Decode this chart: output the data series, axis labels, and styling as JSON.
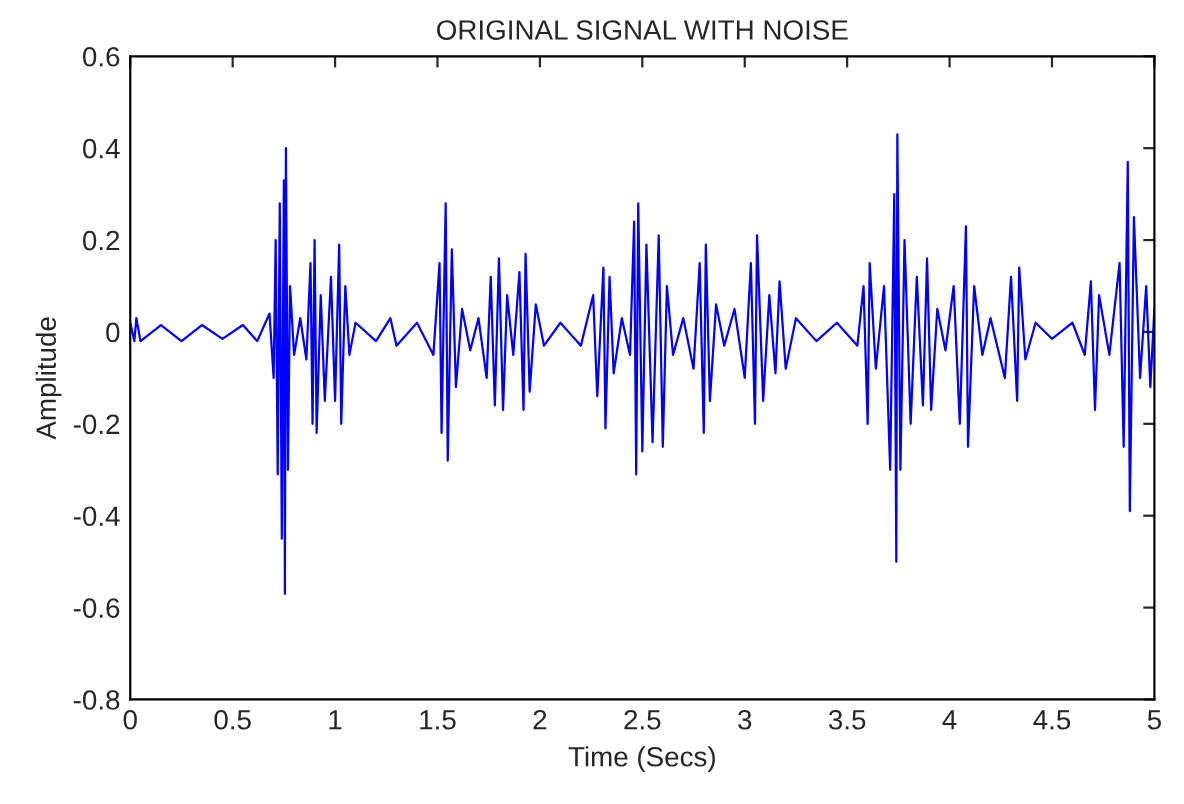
{
  "chart_data": {
    "type": "line",
    "title": "ORIGINAL SIGNAL WITH NOISE",
    "xlabel": "Time (Secs)",
    "ylabel": "Amplitude",
    "xlim": [
      0,
      5
    ],
    "ylim": [
      -0.8,
      0.6
    ],
    "xticks": [
      0,
      0.5,
      1,
      1.5,
      2,
      2.5,
      3,
      3.5,
      4,
      4.5,
      5
    ],
    "yticks": [
      -0.8,
      -0.6,
      -0.4,
      -0.2,
      0,
      0.2,
      0.4,
      0.6
    ],
    "grid": false,
    "marker": "none",
    "line_style": "solid",
    "series": [
      {
        "color": "#0000ff",
        "x": [
          0,
          0.02,
          0.03,
          0.05,
          0.15,
          0.25,
          0.35,
          0.45,
          0.55,
          0.62,
          0.68,
          0.7,
          0.71,
          0.72,
          0.73,
          0.74,
          0.75,
          0.755,
          0.76,
          0.77,
          0.78,
          0.8,
          0.83,
          0.86,
          0.88,
          0.89,
          0.9,
          0.91,
          0.93,
          0.95,
          0.98,
          1.0,
          1.02,
          1.03,
          1.05,
          1.07,
          1.1,
          1.2,
          1.27,
          1.3,
          1.4,
          1.48,
          1.51,
          1.52,
          1.54,
          1.55,
          1.57,
          1.59,
          1.62,
          1.66,
          1.7,
          1.74,
          1.76,
          1.78,
          1.8,
          1.82,
          1.84,
          1.87,
          1.9,
          1.92,
          1.93,
          1.95,
          1.98,
          2.02,
          2.1,
          2.2,
          2.26,
          2.28,
          2.31,
          2.32,
          2.34,
          2.36,
          2.4,
          2.44,
          2.46,
          2.47,
          2.48,
          2.5,
          2.52,
          2.55,
          2.58,
          2.6,
          2.62,
          2.65,
          2.7,
          2.75,
          2.78,
          2.8,
          2.81,
          2.83,
          2.86,
          2.9,
          2.95,
          3.0,
          3.03,
          3.05,
          3.06,
          3.09,
          3.12,
          3.15,
          3.17,
          3.2,
          3.25,
          3.35,
          3.45,
          3.55,
          3.58,
          3.6,
          3.61,
          3.64,
          3.68,
          3.71,
          3.73,
          3.74,
          3.745,
          3.76,
          3.78,
          3.81,
          3.84,
          3.87,
          3.89,
          3.91,
          3.94,
          3.98,
          4.02,
          4.05,
          4.08,
          4.09,
          4.12,
          4.16,
          4.2,
          4.27,
          4.3,
          4.33,
          4.34,
          4.37,
          4.42,
          4.5,
          4.6,
          4.66,
          4.69,
          4.71,
          4.73,
          4.78,
          4.83,
          4.85,
          4.87,
          4.88,
          4.9,
          4.93,
          4.96,
          4.98,
          5.0
        ],
        "values": [
          0.02,
          -0.02,
          0.03,
          -0.02,
          0.015,
          -0.02,
          0.015,
          -0.015,
          0.015,
          -0.02,
          0.04,
          -0.1,
          0.2,
          -0.31,
          0.28,
          -0.45,
          0.33,
          -0.57,
          0.4,
          -0.3,
          0.1,
          -0.05,
          0.03,
          -0.06,
          0.15,
          -0.2,
          0.2,
          -0.22,
          0.08,
          -0.15,
          0.12,
          -0.15,
          0.19,
          -0.2,
          0.1,
          -0.05,
          0.02,
          -0.02,
          0.03,
          -0.03,
          0.02,
          -0.05,
          0.15,
          -0.22,
          0.28,
          -0.28,
          0.18,
          -0.12,
          0.05,
          -0.04,
          0.03,
          -0.1,
          0.12,
          -0.16,
          0.16,
          -0.17,
          0.08,
          -0.05,
          0.13,
          -0.17,
          0.17,
          -0.13,
          0.06,
          -0.03,
          0.02,
          -0.03,
          0.08,
          -0.14,
          0.14,
          -0.21,
          0.12,
          -0.09,
          0.03,
          -0.05,
          0.24,
          -0.31,
          0.28,
          -0.26,
          0.19,
          -0.24,
          0.21,
          -0.25,
          0.1,
          -0.05,
          0.03,
          -0.08,
          0.15,
          -0.22,
          0.19,
          -0.15,
          0.06,
          -0.03,
          0.05,
          -0.1,
          0.15,
          -0.2,
          0.21,
          -0.15,
          0.08,
          -0.09,
          0.11,
          -0.08,
          0.03,
          -0.02,
          0.02,
          -0.03,
          0.1,
          -0.2,
          0.15,
          -0.08,
          0.1,
          -0.3,
          0.3,
          -0.5,
          0.43,
          -0.3,
          0.2,
          -0.2,
          0.12,
          -0.16,
          0.16,
          -0.17,
          0.05,
          -0.04,
          0.1,
          -0.2,
          0.23,
          -0.25,
          0.1,
          -0.05,
          0.03,
          -0.1,
          0.12,
          -0.15,
          0.14,
          -0.06,
          0.02,
          -0.015,
          0.02,
          -0.05,
          0.11,
          -0.17,
          0.08,
          -0.05,
          0.15,
          -0.25,
          0.37,
          -0.39,
          0.25,
          -0.1,
          0.1,
          -0.12,
          0.05
        ]
      }
    ]
  }
}
